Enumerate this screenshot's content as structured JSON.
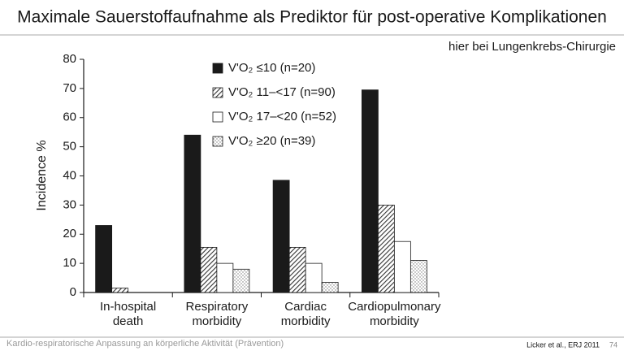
{
  "slide": {
    "title": "Maximale Sauerstoffaufnahme als Prediktor für post-operative Komplikationen",
    "subtitle": "hier bei Lungenkrebs-Chirurgie",
    "footer": "Kardio-respiratorische Anpassung an körperliche Aktivität (Prävention)",
    "citation": "Licker et al., ERJ 2011",
    "page_number": "74"
  },
  "chart_data": {
    "type": "bar",
    "y_label": "Incidence %",
    "categories": [
      [
        "In-hospital",
        "death"
      ],
      [
        "Respiratory",
        "morbidity"
      ],
      [
        "Cardiac",
        "morbidity"
      ],
      [
        "Cardiopulmonary",
        "morbidity"
      ]
    ],
    "series": [
      {
        "name": "V'O₂ ≤10 (n=20)",
        "color": "#1a1a1a",
        "pattern": "solid",
        "values": [
          23,
          54,
          38.5,
          69.5
        ]
      },
      {
        "name": "V'O₂ 11–<17 (n=90)",
        "color": "#555555",
        "pattern": "hatch",
        "values": [
          1.5,
          15.5,
          15.5,
          30
        ]
      },
      {
        "name": "V'O₂ 17–<20 (n=52)",
        "color": "#ffffff",
        "pattern": "solid",
        "values": [
          0,
          10,
          10,
          17.5
        ]
      },
      {
        "name": "V'O₂ ≥20 (n=39)",
        "color": "#888888",
        "pattern": "dots",
        "values": [
          0,
          8,
          3.5,
          11
        ]
      }
    ],
    "ylim": [
      0,
      80
    ],
    "yticks": [
      0,
      10,
      20,
      30,
      40,
      50,
      60,
      70,
      80
    ],
    "grid": false
  }
}
